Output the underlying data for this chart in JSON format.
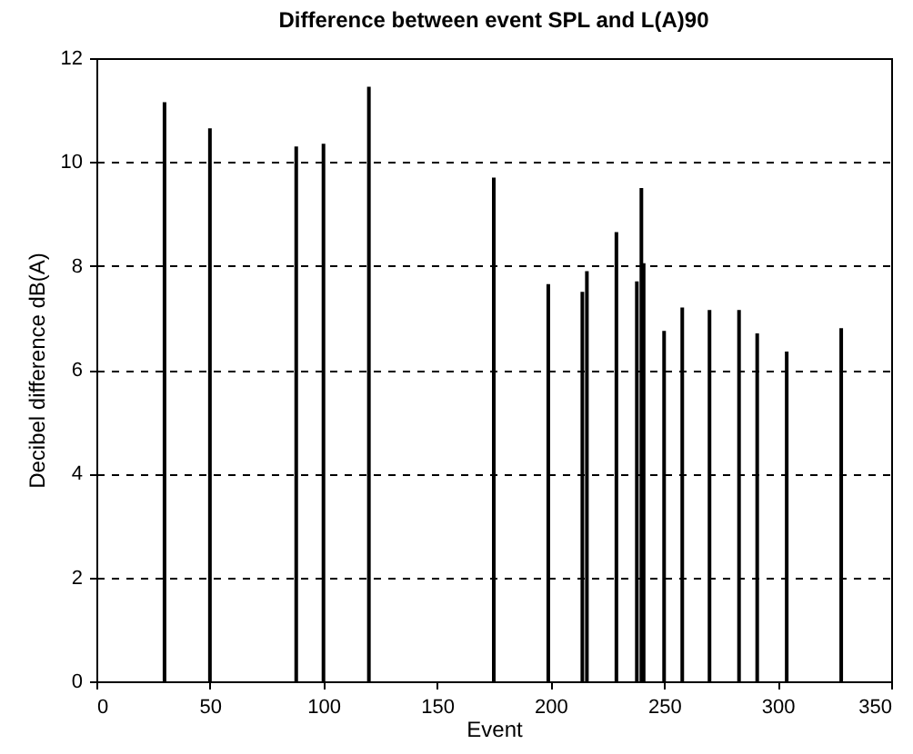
{
  "chart_data": {
    "type": "bar",
    "title": "Difference between event SPL and L(A)90",
    "xlabel": "Event",
    "ylabel": "Decibel difference dB(A)",
    "x": [
      30,
      50,
      88,
      100,
      120,
      175,
      199,
      214,
      216,
      229,
      238,
      240,
      241,
      250,
      258,
      270,
      283,
      291,
      304,
      328
    ],
    "values": [
      11.15,
      10.65,
      10.3,
      10.35,
      11.45,
      9.7,
      7.65,
      7.5,
      7.9,
      8.65,
      7.7,
      9.5,
      8.05,
      6.75,
      7.2,
      7.15,
      7.15,
      6.7,
      6.35,
      6.8
    ],
    "color": "#000000",
    "xlim": [
      0,
      350
    ],
    "xticks": [
      0,
      50,
      100,
      150,
      200,
      250,
      300,
      350
    ],
    "ylim": [
      0,
      12
    ],
    "yticks": [
      0,
      2,
      4,
      6,
      8,
      10,
      12
    ],
    "grid": "y",
    "line_style": "dashed"
  }
}
